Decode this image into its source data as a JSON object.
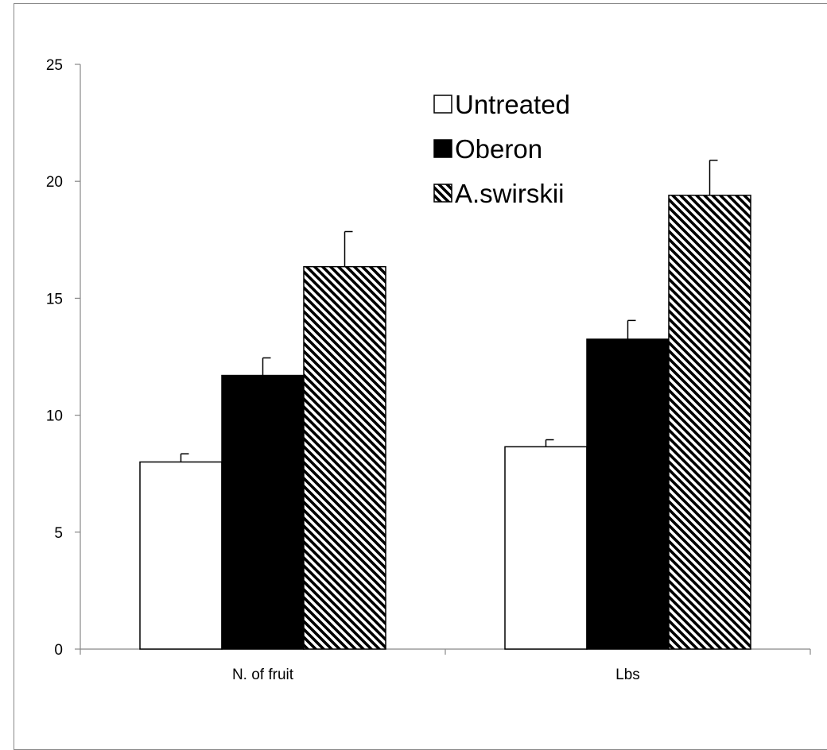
{
  "chart_data": {
    "type": "bar",
    "categories": [
      "N. of fruit",
      "Lbs"
    ],
    "series": [
      {
        "name": "Untreated",
        "values": [
          8.0,
          8.65
        ],
        "errors": [
          0.35,
          0.3
        ],
        "fill": "#ffffff",
        "pattern": "solid-white"
      },
      {
        "name": "Oberon",
        "values": [
          11.7,
          13.25
        ],
        "errors": [
          0.75,
          0.8
        ],
        "fill": "#000000",
        "pattern": "solid-black"
      },
      {
        "name": "A.swirskii",
        "values": [
          16.35,
          19.4
        ],
        "errors": [
          1.5,
          1.5
        ],
        "fill": "#ffffff",
        "pattern": "diagonal-hatch"
      }
    ],
    "ylim": [
      0,
      25
    ],
    "yticks": [
      "0",
      "5",
      "10",
      "15",
      "20",
      "25"
    ],
    "title": "",
    "xlabel": "",
    "ylabel": "",
    "grid": false,
    "legend_position": "top-center"
  }
}
